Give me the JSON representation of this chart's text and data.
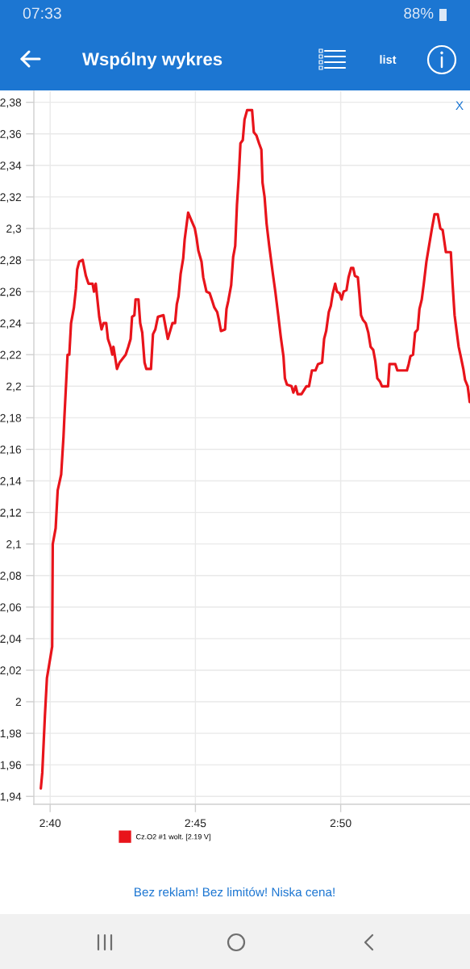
{
  "chart_data": {
    "type": "line",
    "title": "Wspólny wykres",
    "x": [
      159.68,
      159.73,
      159.82,
      159.89,
      160.07,
      160.09,
      160.19,
      160.26,
      160.38,
      160.46,
      160.49,
      160.6,
      160.66,
      160.72,
      160.82,
      160.89,
      160.93,
      161.0,
      161.12,
      161.23,
      161.32,
      161.46,
      161.51,
      161.57,
      161.69,
      161.77,
      161.84,
      161.93,
      161.99,
      162.08,
      162.14,
      162.18,
      162.3,
      162.39,
      162.6,
      162.69,
      162.77,
      162.82,
      162.9,
      162.94,
      163.04,
      163.1,
      163.17,
      163.25,
      163.31,
      163.47,
      163.54,
      163.62,
      163.71,
      163.9,
      164.05,
      164.21,
      164.3,
      164.36,
      164.42,
      164.49,
      164.58,
      164.63,
      164.75,
      164.84,
      164.98,
      165.04,
      165.1,
      165.21,
      165.27,
      165.38,
      165.49,
      165.58,
      165.65,
      165.75,
      165.81,
      165.88,
      166.02,
      166.07,
      166.13,
      166.23,
      166.3,
      166.37,
      166.43,
      166.49,
      166.55,
      166.63,
      166.69,
      166.78,
      166.95,
      167.01,
      167.1,
      167.19,
      167.27,
      167.31,
      167.38,
      167.45,
      167.54,
      167.66,
      167.75,
      167.85,
      167.94,
      168.03,
      168.08,
      168.15,
      168.31,
      168.37,
      168.45,
      168.52,
      168.65,
      168.82,
      168.91,
      169.01,
      169.13,
      169.22,
      169.36,
      169.43,
      169.5,
      169.59,
      169.66,
      169.73,
      169.81,
      169.87,
      169.96,
      170.03,
      170.1,
      170.2,
      170.27,
      170.36,
      170.43,
      170.49,
      170.59,
      170.64,
      170.7,
      170.77,
      170.86,
      170.95,
      171.03,
      171.12,
      171.19,
      171.26,
      171.35,
      171.42,
      171.63,
      171.68,
      171.88,
      171.95,
      172.28,
      172.34,
      172.4,
      172.49,
      172.56,
      172.65,
      172.71,
      172.79,
      172.86,
      172.95,
      173.04,
      173.14,
      173.23,
      173.34,
      173.43,
      173.51,
      173.62,
      173.79,
      173.85,
      173.92,
      173.99,
      174.06,
      174.13,
      174.22,
      174.28,
      174.37,
      174.44
    ],
    "series": [
      {
        "name": "Cz.O2 #1 wolt. [2.19 V]",
        "color": "#e8141b",
        "values": [
          1.945,
          1.955,
          1.991,
          2.015,
          2.035,
          2.1,
          2.11,
          2.134,
          2.144,
          2.168,
          2.18,
          2.22,
          2.22,
          2.24,
          2.25,
          2.262,
          2.274,
          2.279,
          2.28,
          2.27,
          2.265,
          2.265,
          2.26,
          2.265,
          2.244,
          2.236,
          2.24,
          2.24,
          2.23,
          2.225,
          2.22,
          2.225,
          2.211,
          2.215,
          2.22,
          2.225,
          2.23,
          2.244,
          2.245,
          2.255,
          2.255,
          2.24,
          2.234,
          2.215,
          2.211,
          2.211,
          2.233,
          2.236,
          2.244,
          2.245,
          2.23,
          2.24,
          2.24,
          2.252,
          2.257,
          2.271,
          2.281,
          2.293,
          2.31,
          2.306,
          2.3,
          2.294,
          2.286,
          2.279,
          2.269,
          2.26,
          2.259,
          2.254,
          2.25,
          2.247,
          2.242,
          2.235,
          2.236,
          2.249,
          2.254,
          2.264,
          2.282,
          2.289,
          2.315,
          2.332,
          2.354,
          2.356,
          2.369,
          2.375,
          2.375,
          2.361,
          2.359,
          2.354,
          2.35,
          2.329,
          2.32,
          2.303,
          2.289,
          2.272,
          2.26,
          2.245,
          2.231,
          2.219,
          2.205,
          2.201,
          2.2,
          2.196,
          2.2,
          2.195,
          2.195,
          2.2,
          2.2,
          2.21,
          2.21,
          2.214,
          2.215,
          2.23,
          2.235,
          2.247,
          2.251,
          2.259,
          2.265,
          2.26,
          2.259,
          2.255,
          2.26,
          2.261,
          2.269,
          2.275,
          2.275,
          2.27,
          2.269,
          2.259,
          2.245,
          2.242,
          2.24,
          2.234,
          2.225,
          2.223,
          2.216,
          2.205,
          2.203,
          2.2,
          2.2,
          2.214,
          2.214,
          2.21,
          2.21,
          2.214,
          2.219,
          2.22,
          2.234,
          2.236,
          2.249,
          2.255,
          2.265,
          2.279,
          2.289,
          2.3,
          2.309,
          2.309,
          2.3,
          2.299,
          2.285,
          2.285,
          2.265,
          2.245,
          2.235,
          2.225,
          2.219,
          2.211,
          2.204,
          2.2,
          2.19
        ]
      }
    ],
    "xlim": [
      159.44,
      174.45
    ],
    "xticks": [
      {
        "value": 160,
        "label": "2:40"
      },
      {
        "value": 165,
        "label": "2:45"
      },
      {
        "value": 170,
        "label": "2:50"
      }
    ],
    "ylim": [
      1.935,
      2.387
    ],
    "yticks": [
      {
        "value": 1.94,
        "label": "1,94"
      },
      {
        "value": 1.96,
        "label": "1,96"
      },
      {
        "value": 1.98,
        "label": "1,98"
      },
      2,
      {
        "value": 2.02,
        "label": "2,02"
      },
      {
        "value": 2.04,
        "label": "2,04"
      },
      {
        "value": 2.06,
        "label": "2,06"
      },
      {
        "value": 2.08,
        "label": "2,08"
      },
      {
        "value": 2.1,
        "label": "2,1"
      },
      {
        "value": 2.12,
        "label": "2,12"
      },
      {
        "value": 2.14,
        "label": "2,14"
      },
      {
        "value": 2.16,
        "label": "2,16"
      },
      {
        "value": 2.18,
        "label": "2,18"
      },
      {
        "value": 2.2,
        "label": "2,2"
      },
      {
        "value": 2.22,
        "label": "2,22"
      },
      {
        "value": 2.24,
        "label": "2,24"
      },
      {
        "value": 2.26,
        "label": "2,26"
      },
      {
        "value": 2.28,
        "label": "2,28"
      },
      {
        "value": 2.3,
        "label": "2,3"
      },
      {
        "value": 2.32,
        "label": "2,32"
      },
      {
        "value": 2.34,
        "label": "2,34"
      },
      {
        "value": 2.36,
        "label": "2,36"
      },
      {
        "value": 2.38,
        "label": "2,38"
      }
    ],
    "grid": true,
    "legend": "bottom",
    "line_style": "solid",
    "annotations": [
      "07:33",
      "88%",
      "list",
      "X",
      "Bez reklam! Bez limitów! Niska cena!"
    ]
  }
}
